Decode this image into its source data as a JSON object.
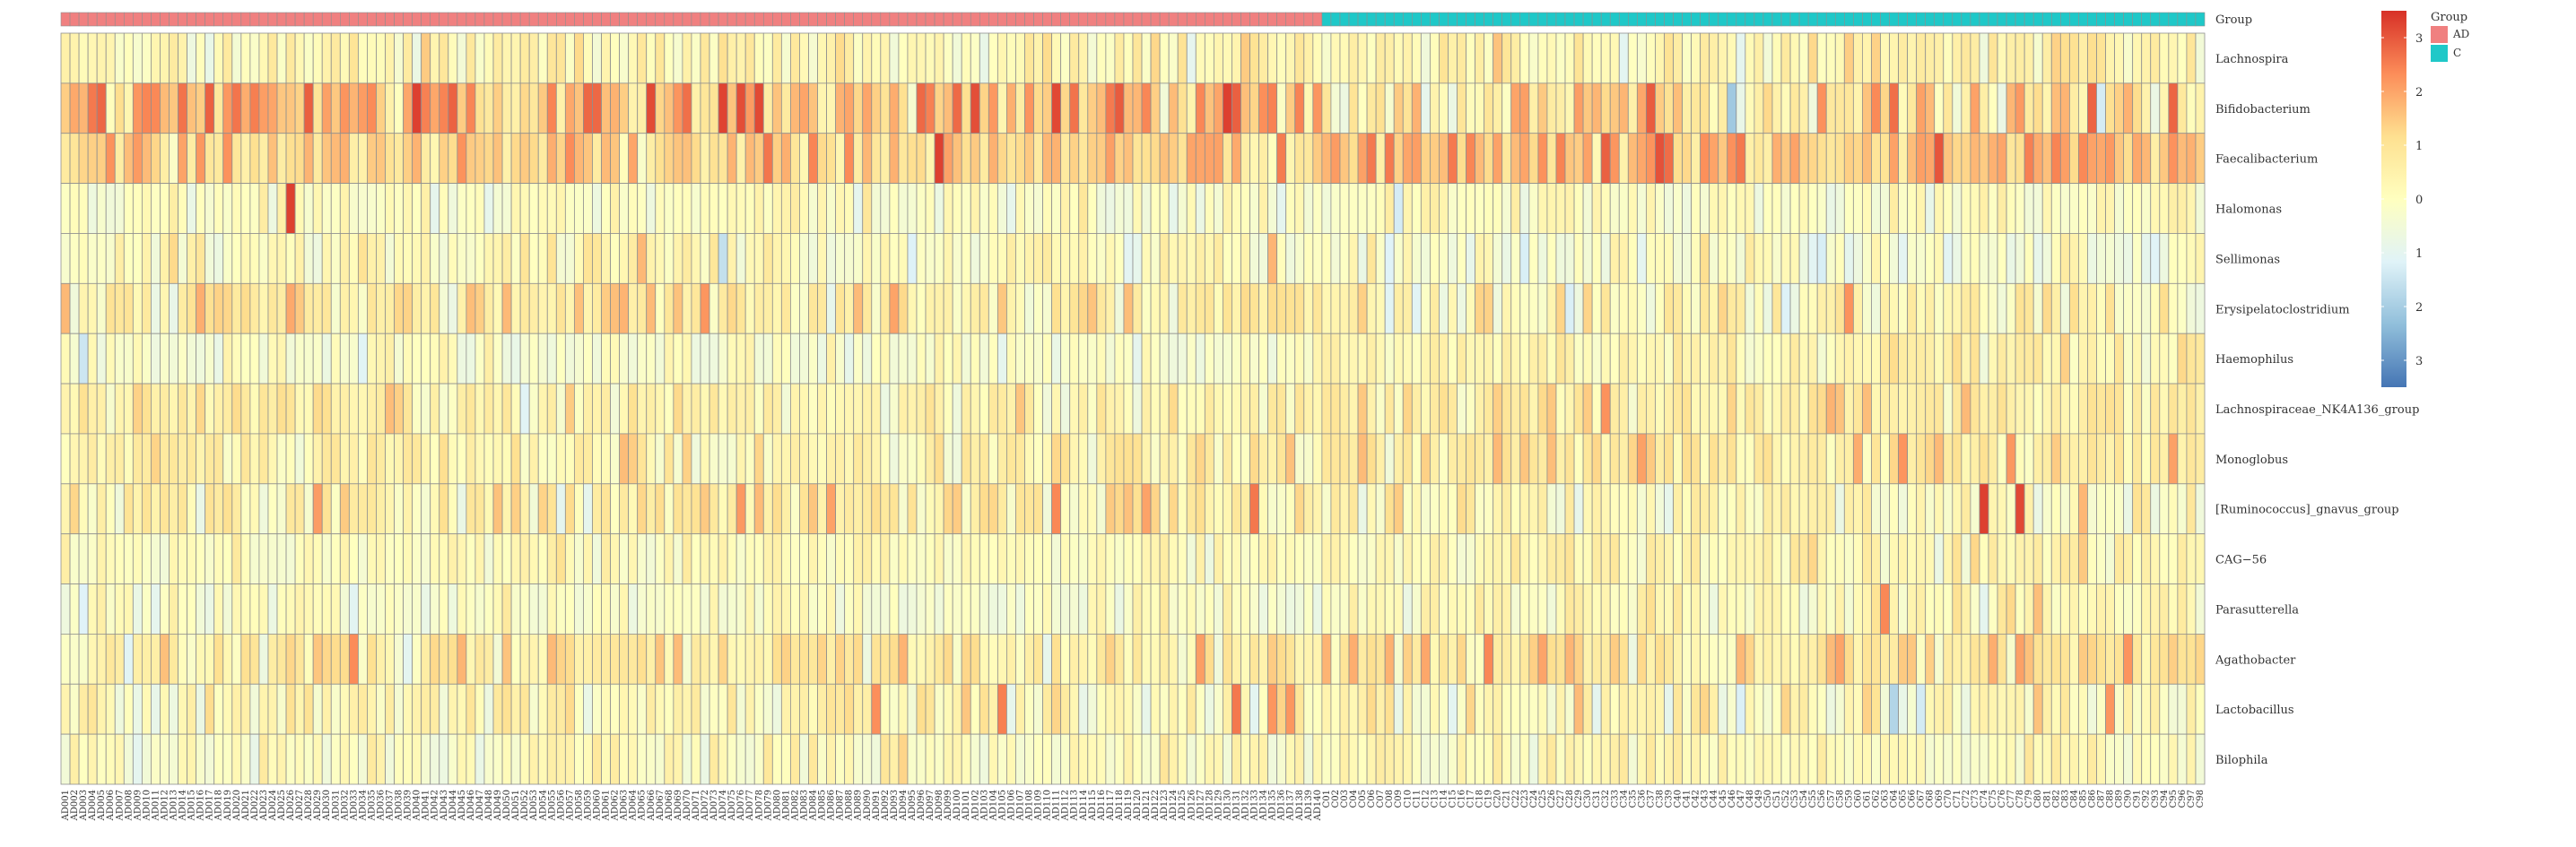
{
  "chart_data": {
    "type": "heatmap",
    "title": "",
    "xlabel": "",
    "ylabel": "",
    "rows": [
      "Lachnospira",
      "Bifidobacterium",
      "Faecalibacterium",
      "Halomonas",
      "Sellimonas",
      "Erysipelatoclostridium",
      "Haemophilus",
      "Lachnospiraceae_NK4A136_group",
      "Monoglobus",
      "[Ruminococcus]_gnavus_group",
      "CAG−56",
      "Parasutterella",
      "Agathobacter",
      "Lactobacillus",
      "Bilophila"
    ],
    "groups": [
      {
        "name": "AD",
        "prefix": "AD",
        "count": 140,
        "color": "#F08080"
      },
      {
        "name": "C",
        "prefix": "C",
        "count": 98,
        "color": "#1FC8C8"
      }
    ],
    "annotation_title": "Group",
    "legend_ticks": [
      3,
      2,
      1,
      0,
      -1,
      -2,
      -3
    ],
    "legend_tick_labels": [
      "3",
      "2",
      "1",
      "0",
      "1",
      "2",
      "3"
    ],
    "color_range": [
      -3.5,
      3.5
    ],
    "color_stops": [
      "#4575B4",
      "#91BFDB",
      "#E0F3F8",
      "#FFFFBF",
      "#FEE090",
      "#FC8D59",
      "#D73027"
    ],
    "row_means": {
      "AD": [
        0.3,
        1.7,
        1.3,
        -0.1,
        0.1,
        0.7,
        -0.2,
        0.4,
        0.4,
        0.6,
        0.1,
        -0.1,
        0.6,
        0.3,
        0.0
      ],
      "C": [
        0.4,
        0.8,
        1.6,
        0.0,
        -0.1,
        0.2,
        0.3,
        0.7,
        0.8,
        0.2,
        0.3,
        0.1,
        1.0,
        0.2,
        0.1
      ]
    },
    "row_spread": [
      0.5,
      0.9,
      0.6,
      0.4,
      0.5,
      0.6,
      0.4,
      0.5,
      0.5,
      0.6,
      0.4,
      0.4,
      0.6,
      0.6,
      0.4
    ],
    "hotspots": [
      {
        "row": 3,
        "col": 25,
        "value": 3.3
      },
      {
        "row": 4,
        "col": 73,
        "value": -1.6
      },
      {
        "row": 1,
        "col": 110,
        "value": 3.2
      },
      {
        "row": 1,
        "col": 130,
        "value": 2.9
      },
      {
        "row": 1,
        "col": 58,
        "value": 2.8
      },
      {
        "row": 1,
        "col": 59,
        "value": 2.8
      },
      {
        "row": 1,
        "col": 203,
        "value": 2.7
      },
      {
        "row": 9,
        "col": 213,
        "value": 3.3
      },
      {
        "row": 9,
        "col": 217,
        "value": 3.2
      },
      {
        "row": 9,
        "col": 132,
        "value": 2.6
      },
      {
        "row": 9,
        "col": 110,
        "value": 2.4
      },
      {
        "row": 11,
        "col": 202,
        "value": 2.4
      },
      {
        "row": 13,
        "col": 130,
        "value": 2.6
      },
      {
        "row": 13,
        "col": 104,
        "value": 2.5
      },
      {
        "row": 13,
        "col": 90,
        "value": 2.3
      },
      {
        "row": 13,
        "col": 134,
        "value": 2.2
      },
      {
        "row": 13,
        "col": 136,
        "value": 2.2
      },
      {
        "row": 13,
        "col": 227,
        "value": 2.2
      },
      {
        "row": 12,
        "col": 158,
        "value": 2.4
      },
      {
        "row": 5,
        "col": 71,
        "value": 2.2
      }
    ]
  }
}
